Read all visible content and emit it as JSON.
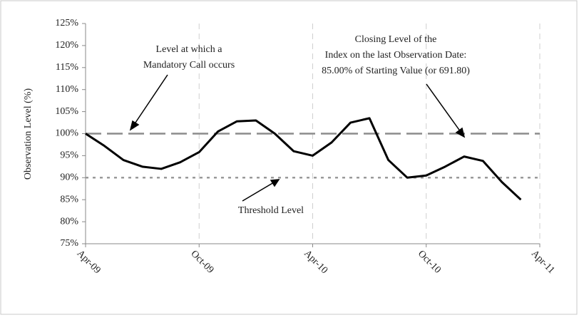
{
  "chart_data": {
    "type": "line",
    "y_label": "Observation Level (%)",
    "ylim": [
      75,
      125
    ],
    "yticks": [
      {
        "value": 75,
        "label": "75%"
      },
      {
        "value": 80,
        "label": "80%"
      },
      {
        "value": 85,
        "label": "85%"
      },
      {
        "value": 90,
        "label": "90%"
      },
      {
        "value": 95,
        "label": "95%"
      },
      {
        "value": 100,
        "label": "100%"
      },
      {
        "value": 105,
        "label": "105%"
      },
      {
        "value": 110,
        "label": "110%"
      },
      {
        "value": 115,
        "label": "115%"
      },
      {
        "value": 120,
        "label": "120%"
      },
      {
        "value": 125,
        "label": "125%"
      }
    ],
    "xlim": [
      "2009-04",
      "2011-04"
    ],
    "xticks": [
      {
        "value": "2009-04",
        "label": "Apr-09"
      },
      {
        "value": "2009-10",
        "label": "Oct-09"
      },
      {
        "value": "2010-04",
        "label": "Apr-10"
      },
      {
        "value": "2010-10",
        "label": "Oct-10"
      },
      {
        "value": "2011-04",
        "label": "Apr-11"
      }
    ],
    "grid": "x",
    "x": [
      "2009-04",
      "2009-05",
      "2009-06",
      "2009-07",
      "2009-08",
      "2009-09",
      "2009-10",
      "2009-11",
      "2009-12",
      "2010-01",
      "2010-02",
      "2010-03",
      "2010-04",
      "2010-05",
      "2010-06",
      "2010-07",
      "2010-08",
      "2010-09",
      "2010-10",
      "2010-11",
      "2010-12",
      "2011-01",
      "2011-02",
      "2011-03"
    ],
    "series": [
      {
        "color": "#000000",
        "values": [
          100,
          97.2,
          94,
          92.5,
          92,
          93.5,
          95.8,
          100.5,
          102.8,
          103,
          100,
          96,
          95,
          98,
          102.5,
          103.5,
          94,
          90,
          90.5,
          92.5,
          94.8,
          93.8,
          89,
          85
        ]
      }
    ],
    "reference_lines": [
      {
        "value": 100,
        "color": "#8c8c8c",
        "style": "dashed"
      },
      {
        "value": 90,
        "color": "#9a9a9a",
        "style": "dotted"
      }
    ],
    "annotations": [
      {
        "lines": [
          "Level at which a",
          "Mandatory Call occurs"
        ]
      },
      {
        "lines": [
          "Threshold Level"
        ]
      },
      {
        "lines": [
          "Closing Level of the",
          "Index on the last Observation Date:",
          "85.00% of Starting Value (or 691.80)"
        ]
      }
    ]
  }
}
